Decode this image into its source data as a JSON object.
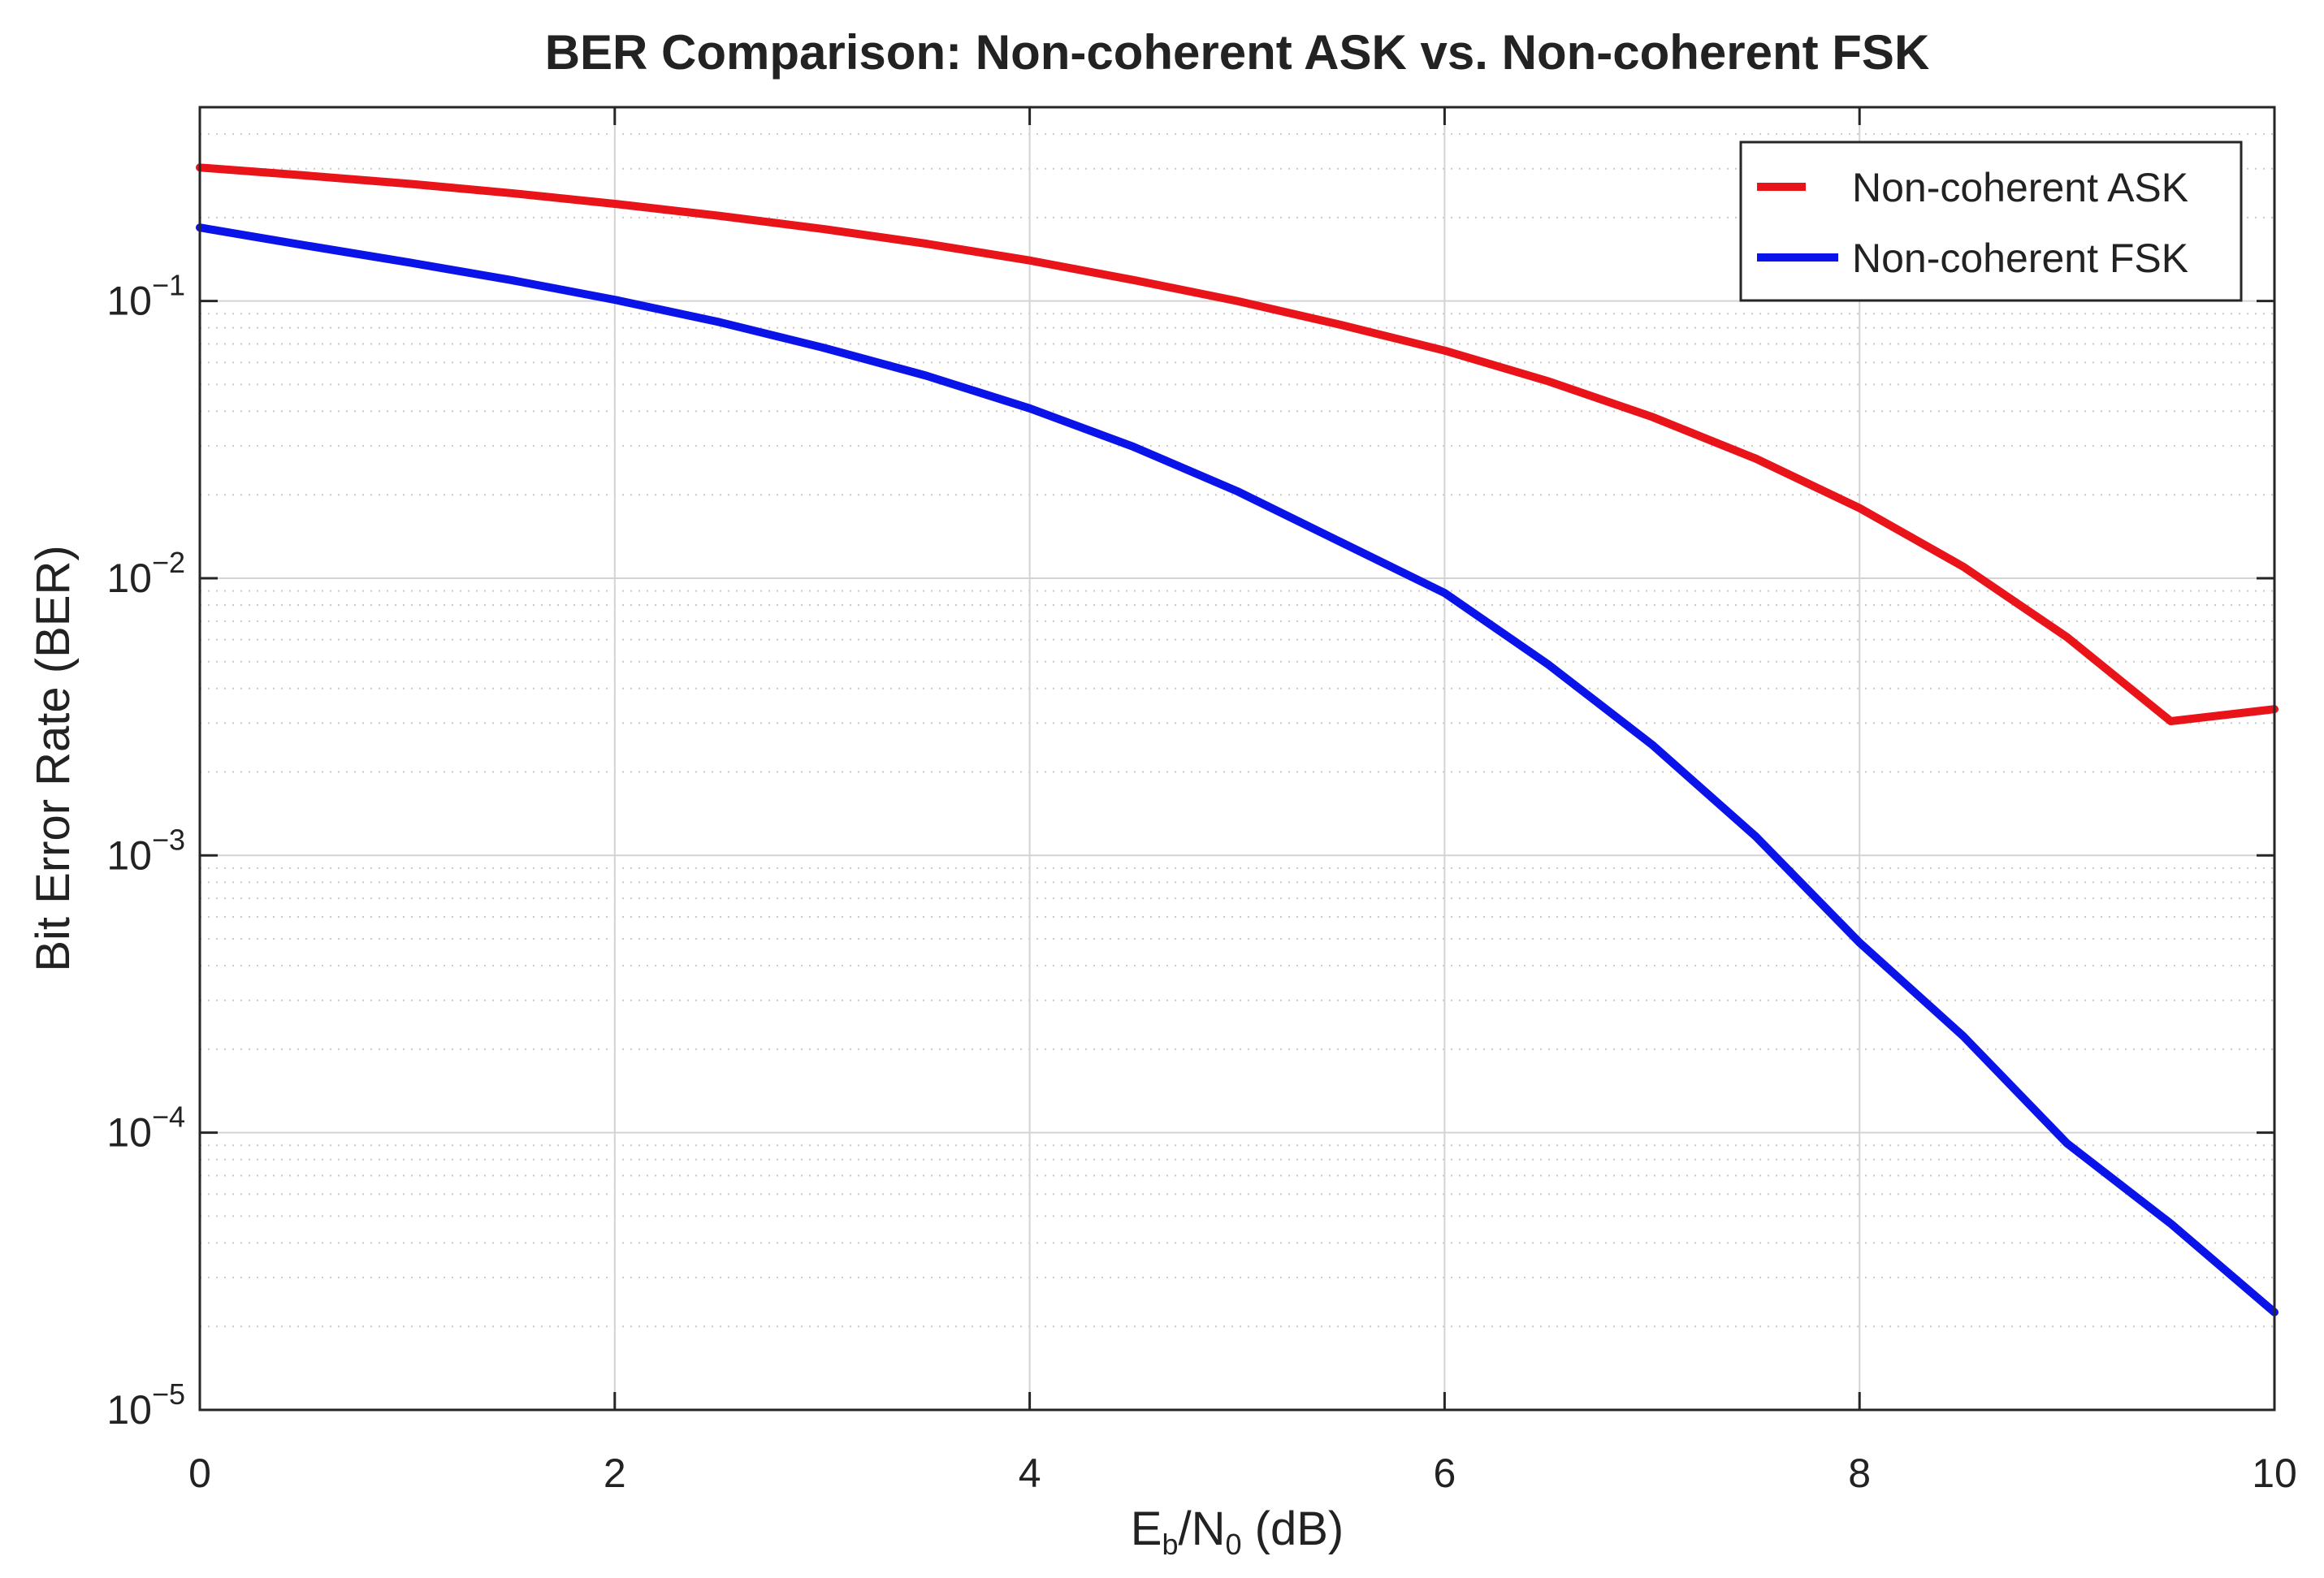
{
  "chart_data": {
    "type": "line",
    "title": "BER Comparison: Non-coherent ASK vs. Non-coherent FSK",
    "xlabel_main": "E",
    "xlabel_sub1": "b",
    "xlabel_mid": "/N",
    "xlabel_sub2": "0",
    "xlabel_tail": " (dB)",
    "ylabel": "Bit Error Rate (BER)",
    "xlim": [
      0,
      10
    ],
    "ylim": [
      1e-05,
      0.5
    ],
    "yscale": "log",
    "grid": true,
    "minor_grid": true,
    "legend_position": "top-right",
    "x_ticks": [
      "0",
      "2",
      "4",
      "6",
      "8",
      "10"
    ],
    "y_ticks": [
      {
        "base": "10",
        "exp": "−5"
      },
      {
        "base": "10",
        "exp": "−4"
      },
      {
        "base": "10",
        "exp": "−3"
      },
      {
        "base": "10",
        "exp": "−2"
      },
      {
        "base": "10",
        "exp": "−1"
      }
    ],
    "x": [
      0,
      0.5,
      1,
      1.5,
      2,
      2.5,
      3,
      3.5,
      4,
      4.5,
      5,
      5.5,
      6,
      6.5,
      7,
      7.5,
      8,
      8.5,
      9,
      9.5,
      10
    ],
    "series": [
      {
        "name": "Non-coherent ASK",
        "color": "#e8141a",
        "values": [
          0.303,
          0.284,
          0.265,
          0.245,
          0.224,
          0.203,
          0.182,
          0.161,
          0.14,
          0.119,
          0.1,
          0.082,
          0.0662,
          0.0513,
          0.0382,
          0.027,
          0.0179,
          0.011,
          0.00613,
          0.00305,
          0.00337
        ]
      },
      {
        "name": "Non-coherent FSK",
        "color": "#0a14e8",
        "values": [
          0.184,
          0.159,
          0.138,
          0.119,
          0.101,
          0.084,
          0.068,
          0.0538,
          0.041,
          0.0298,
          0.0206,
          0.0135,
          0.00885,
          0.00488,
          0.00251,
          0.00117,
          0.000485,
          0.000223,
          9.15e-05,
          4.7e-05,
          2.25e-05
        ]
      }
    ]
  }
}
